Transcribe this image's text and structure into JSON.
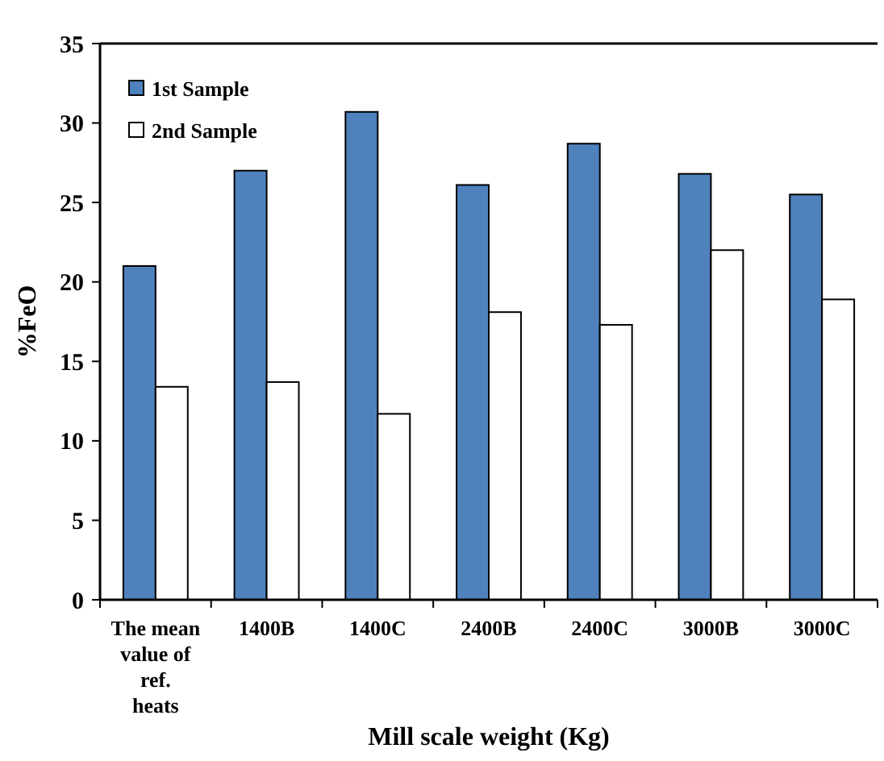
{
  "chart_data": {
    "type": "bar",
    "xlabel": "Mill scale weight (Kg)",
    "ylabel": "%FeO",
    "categories": [
      "The mean value of ref. heats",
      "1400B",
      "1400C",
      "2400B",
      "2400C",
      "3000B",
      "3000C"
    ],
    "series": [
      {
        "name": "1st Sample",
        "color": "#4f81bd",
        "values": [
          21,
          27,
          30.7,
          26.1,
          28.7,
          26.8,
          25.5
        ]
      },
      {
        "name": "2nd Sample",
        "color": "#ffffff",
        "values": [
          13.4,
          13.7,
          11.7,
          18.1,
          17.3,
          22,
          18.9
        ]
      }
    ],
    "ylim": [
      0,
      35
    ],
    "yticks": [
      0,
      5,
      10,
      15,
      20,
      25,
      30,
      35
    ],
    "grid": false,
    "legend": "top left"
  }
}
